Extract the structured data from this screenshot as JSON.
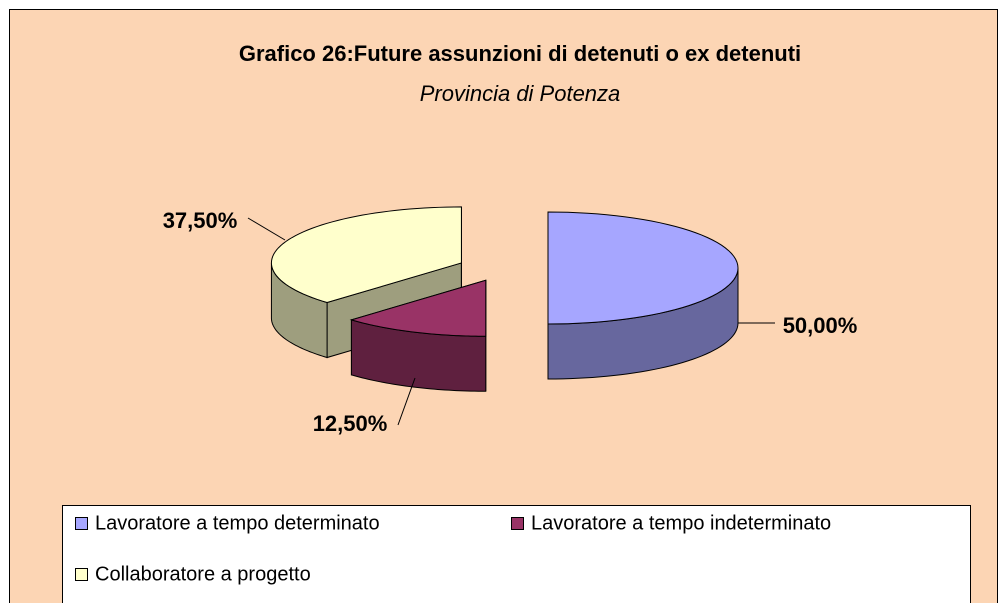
{
  "chart_data": {
    "type": "pie3d",
    "title": "Grafico 26:Future assunzioni di detenuti o ex detenuti",
    "subtitle": "Provincia di Potenza",
    "categories": [
      "Lavoratore a tempo determinato",
      "Lavoratore a tempo indeterminato",
      "Collaboratore a progetto"
    ],
    "values": [
      50,
      12.5,
      37.5
    ],
    "value_labels": [
      "50,00%",
      "12,50%",
      "37,50%"
    ],
    "colors": [
      "#a6a6ff",
      "#993366",
      "#ffffcc"
    ]
  }
}
